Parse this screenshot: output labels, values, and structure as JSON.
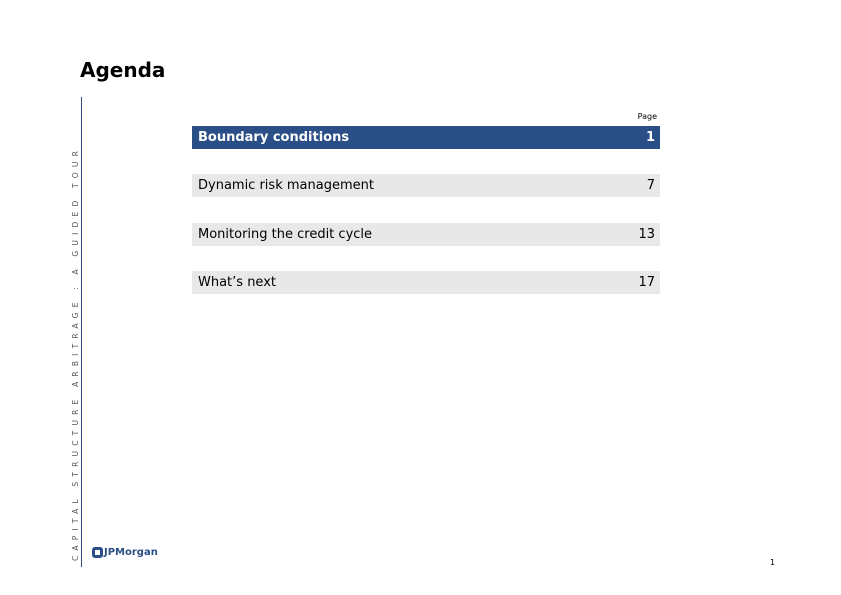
{
  "title": "Agenda",
  "side_text": "CAPITAL STRUCTURE ARBITRAGE : A GUIDED TOUR",
  "page_header": "Page",
  "items": [
    {
      "label": "Boundary conditions",
      "page": "1",
      "active": true
    },
    {
      "label": "Dynamic risk management",
      "page": "7"
    },
    {
      "label": "Monitoring the credit cycle",
      "page": "13"
    },
    {
      "label": "What’s next",
      "page": "17"
    }
  ],
  "logo": "JPMorgan",
  "page_number": "1",
  "colors": {
    "accent": "#2a4f86",
    "row_bg": "#e8e8e8"
  }
}
